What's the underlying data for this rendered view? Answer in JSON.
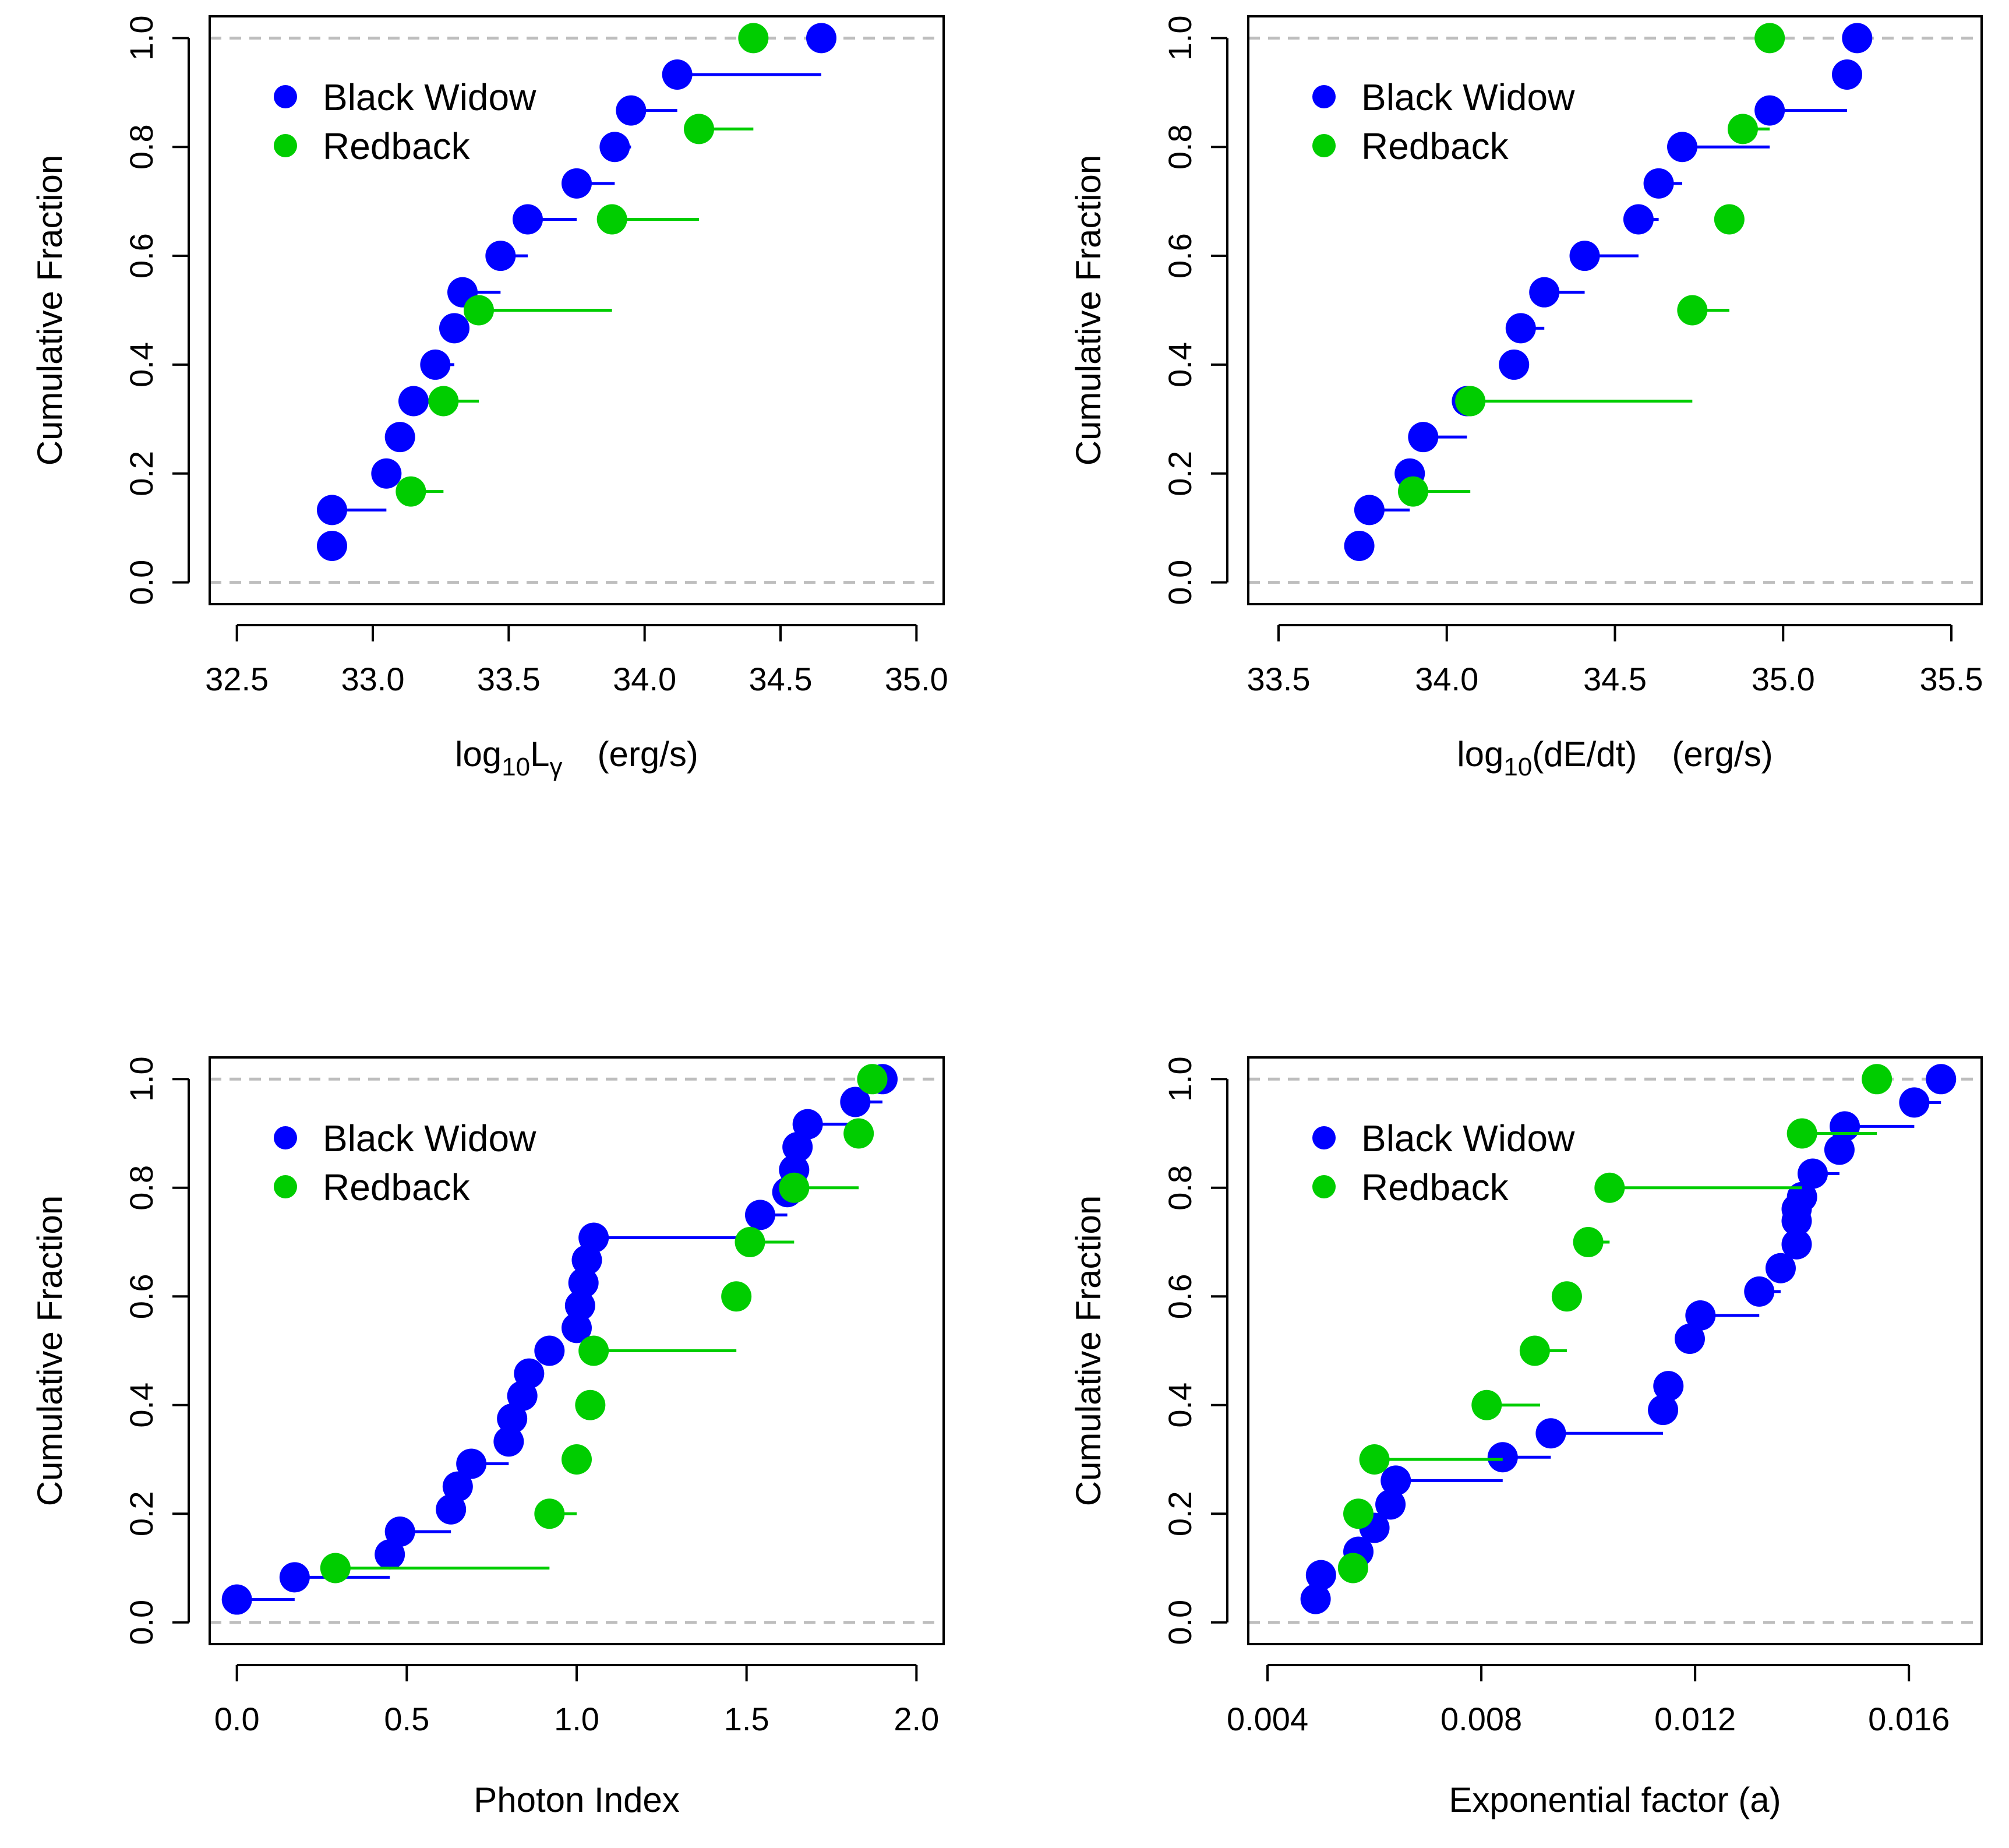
{
  "colors": {
    "black_widow": "#0000FF",
    "redback": "#00CD00",
    "reference": "#BEBEBE",
    "axis": "#000000"
  },
  "chart_data": [
    {
      "type": "scatter",
      "kind": "cumulative-distribution",
      "ylabel": "Cumulative Fraction",
      "xlabel": {
        "pre": "log",
        "sub": "10",
        "main": "L",
        "mainsub": "γ",
        "unit": "(erg/s)"
      },
      "xlim": [
        32.4,
        35.1
      ],
      "ylim": [
        -0.04,
        1.04
      ],
      "xticks": [
        32.5,
        33.0,
        33.5,
        34.0,
        34.5,
        35.0
      ],
      "xtick_labels": [
        "32.5",
        "33.0",
        "33.5",
        "34.0",
        "34.5",
        "35.0"
      ],
      "yticks": [
        0.0,
        0.2,
        0.4,
        0.6,
        0.8,
        1.0
      ],
      "ytick_labels": [
        "0.0",
        "0.2",
        "0.4",
        "0.6",
        "0.8",
        "1.0"
      ],
      "legend": [
        "Black Widow",
        "Redback"
      ],
      "reference_lines": [
        0,
        1
      ],
      "series": [
        {
          "name": "Black Widow",
          "color": "#0000FF",
          "x": [
            32.85,
            32.85,
            33.05,
            33.1,
            33.15,
            33.23,
            33.3,
            33.33,
            33.47,
            33.57,
            33.75,
            33.89,
            33.95,
            34.12,
            34.65
          ],
          "y": [
            0.067,
            0.133,
            0.2,
            0.267,
            0.333,
            0.4,
            0.467,
            0.533,
            0.6,
            0.667,
            0.733,
            0.8,
            0.867,
            0.933,
            1.0
          ],
          "xerr_hi": [
            null,
            33.05,
            null,
            null,
            null,
            33.3,
            null,
            33.47,
            33.57,
            33.75,
            33.89,
            33.95,
            34.12,
            34.65,
            null
          ]
        },
        {
          "name": "Redback",
          "color": "#00CD00",
          "x": [
            33.14,
            33.26,
            33.39,
            33.88,
            34.2,
            34.4
          ],
          "y": [
            0.167,
            0.333,
            0.5,
            0.667,
            0.833,
            1.0
          ],
          "xerr_hi": [
            33.26,
            33.39,
            33.88,
            34.2,
            34.4,
            null
          ]
        }
      ]
    },
    {
      "type": "scatter",
      "kind": "cumulative-distribution",
      "ylabel": "Cumulative Fraction",
      "xlabel": {
        "pre": "log",
        "sub": "10",
        "main": "(dE/dt)",
        "mainsub": "",
        "unit": "(erg/s)"
      },
      "xlim": [
        33.41,
        35.59
      ],
      "ylim": [
        -0.04,
        1.04
      ],
      "xticks": [
        33.5,
        34.0,
        34.5,
        35.0,
        35.5
      ],
      "xtick_labels": [
        "33.5",
        "34.0",
        "34.5",
        "35.0",
        "35.5"
      ],
      "yticks": [
        0.0,
        0.2,
        0.4,
        0.6,
        0.8,
        1.0
      ],
      "ytick_labels": [
        "0.0",
        "0.2",
        "0.4",
        "0.6",
        "0.8",
        "1.0"
      ],
      "legend": [
        "Black Widow",
        "Redback"
      ],
      "reference_lines": [
        0,
        1
      ],
      "series": [
        {
          "name": "Black Widow",
          "color": "#0000FF",
          "x": [
            33.74,
            33.77,
            33.89,
            33.93,
            34.06,
            34.2,
            34.22,
            34.29,
            34.41,
            34.57,
            34.63,
            34.7,
            34.96,
            35.19,
            35.22
          ],
          "y": [
            0.067,
            0.133,
            0.2,
            0.267,
            0.333,
            0.4,
            0.467,
            0.533,
            0.6,
            0.667,
            0.733,
            0.8,
            0.867,
            0.933,
            1.0
          ],
          "xerr_hi": [
            null,
            33.89,
            null,
            34.06,
            null,
            null,
            34.29,
            34.41,
            34.57,
            34.63,
            34.7,
            34.96,
            35.19,
            null,
            null
          ]
        },
        {
          "name": "Redback",
          "color": "#00CD00",
          "x": [
            33.9,
            34.07,
            34.73,
            34.84,
            34.88,
            34.96
          ],
          "y": [
            0.167,
            0.333,
            0.5,
            0.667,
            0.833,
            1.0
          ],
          "xerr_hi": [
            34.07,
            34.73,
            34.84,
            null,
            34.96,
            null
          ]
        }
      ]
    },
    {
      "type": "scatter",
      "kind": "cumulative-distribution",
      "ylabel": "Cumulative Fraction",
      "xlabel": {
        "pre": "",
        "sub": "",
        "main": "Photon Index",
        "mainsub": "",
        "unit": ""
      },
      "xlim": [
        -0.08,
        2.08
      ],
      "ylim": [
        -0.04,
        1.04
      ],
      "xticks": [
        0.0,
        0.5,
        1.0,
        1.5,
        2.0
      ],
      "xtick_labels": [
        "0.0",
        "0.5",
        "1.0",
        "1.5",
        "2.0"
      ],
      "yticks": [
        0.0,
        0.2,
        0.4,
        0.6,
        0.8,
        1.0
      ],
      "ytick_labels": [
        "0.0",
        "0.2",
        "0.4",
        "0.6",
        "0.8",
        "1.0"
      ],
      "legend": [
        "Black Widow",
        "Redback"
      ],
      "reference_lines": [
        0,
        1
      ],
      "series": [
        {
          "name": "Black Widow",
          "color": "#0000FF",
          "x": [
            0.0,
            0.17,
            0.45,
            0.48,
            0.63,
            0.65,
            0.69,
            0.8,
            0.81,
            0.84,
            0.86,
            0.92,
            1.0,
            1.01,
            1.02,
            1.03,
            1.05,
            1.54,
            1.62,
            1.64,
            1.65,
            1.68,
            1.82,
            1.9
          ],
          "y": [
            0.042,
            0.083,
            0.125,
            0.167,
            0.208,
            0.25,
            0.292,
            0.333,
            0.375,
            0.417,
            0.458,
            0.5,
            0.542,
            0.583,
            0.625,
            0.667,
            0.708,
            0.75,
            0.792,
            0.833,
            0.875,
            0.917,
            0.958,
            1.0
          ],
          "xerr_hi": [
            0.17,
            0.45,
            null,
            0.63,
            null,
            null,
            0.8,
            null,
            null,
            null,
            null,
            0.92,
            null,
            null,
            null,
            null,
            1.54,
            1.62,
            null,
            null,
            null,
            1.82,
            1.9,
            null
          ]
        },
        {
          "name": "Redback",
          "color": "#00CD00",
          "x": [
            0.29,
            0.92,
            1.0,
            1.04,
            1.05,
            1.47,
            1.51,
            1.64,
            1.83,
            1.87
          ],
          "y": [
            0.1,
            0.2,
            0.3,
            0.4,
            0.5,
            0.6,
            0.7,
            0.8,
            0.9,
            1.0
          ],
          "xerr_hi": [
            0.92,
            1.0,
            null,
            null,
            1.47,
            1.51,
            1.64,
            1.83,
            null,
            null
          ]
        }
      ]
    },
    {
      "type": "scatter",
      "kind": "cumulative-distribution",
      "ylabel": "Cumulative Fraction",
      "xlabel": {
        "pre": "",
        "sub": "",
        "main": "Exponential factor (a)",
        "mainsub": "",
        "unit": ""
      },
      "xlim": [
        0.00364,
        0.01736
      ],
      "ylim": [
        -0.04,
        1.04
      ],
      "xticks": [
        0.004,
        0.008,
        0.012,
        0.016
      ],
      "xtick_labels": [
        "0.004",
        "0.008",
        "0.012",
        "0.016"
      ],
      "yticks": [
        0.0,
        0.2,
        0.4,
        0.6,
        0.8,
        1.0
      ],
      "ytick_labels": [
        "0.0",
        "0.2",
        "0.4",
        "0.6",
        "0.8",
        "1.0"
      ],
      "legend": [
        "Black Widow",
        "Redback"
      ],
      "reference_lines": [
        0,
        1
      ],
      "series": [
        {
          "name": "Black Widow",
          "color": "#0000FF",
          "x": [
            0.0049,
            0.005,
            0.0057,
            0.006,
            0.0063,
            0.0064,
            0.0084,
            0.0093,
            0.0114,
            0.0115,
            0.0119,
            0.0121,
            0.0132,
            0.0136,
            0.0139,
            0.0139,
            0.0139,
            0.014,
            0.0142,
            0.0147,
            0.0148,
            0.0161,
            0.0166
          ],
          "y": [
            0.043,
            0.087,
            0.13,
            0.174,
            0.217,
            0.261,
            0.304,
            0.348,
            0.391,
            0.435,
            0.522,
            0.565,
            0.609,
            0.652,
            0.696,
            0.739,
            0.761,
            0.783,
            0.826,
            0.87,
            0.913,
            0.957,
            1.0
          ],
          "xerr_hi": [
            null,
            null,
            null,
            null,
            null,
            0.0084,
            0.0093,
            0.0114,
            null,
            null,
            null,
            0.0132,
            0.0136,
            null,
            null,
            null,
            null,
            null,
            0.0147,
            null,
            0.0161,
            0.0166,
            null
          ]
        },
        {
          "name": "Redback",
          "color": "#00CD00",
          "x": [
            0.0056,
            0.0057,
            0.006,
            0.0081,
            0.009,
            0.0096,
            0.01,
            0.0104,
            0.014,
            0.0154
          ],
          "y": [
            0.1,
            0.2,
            0.3,
            0.4,
            0.5,
            0.6,
            0.7,
            0.8,
            0.9,
            1.0
          ],
          "xerr_hi": [
            null,
            null,
            0.0084,
            0.0091,
            0.0096,
            0.0096,
            0.0104,
            0.014,
            0.0154,
            null
          ]
        }
      ]
    }
  ]
}
